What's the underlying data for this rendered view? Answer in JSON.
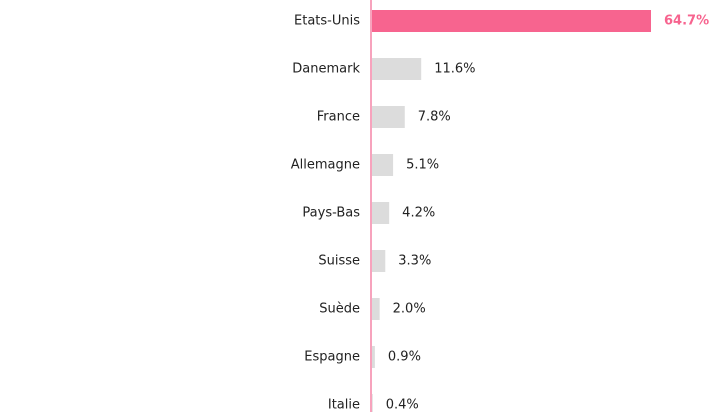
{
  "chart_data": {
    "type": "hbar",
    "categories": [
      "Etats-Unis",
      "Danemark",
      "France",
      "Allemagne",
      "Pays-Bas",
      "Suisse",
      "Suède",
      "Espagne",
      "Italie"
    ],
    "values": [
      64.7,
      11.6,
      7.8,
      5.1,
      4.2,
      3.3,
      2.0,
      0.9,
      0.4
    ],
    "value_labels": [
      "64.7%",
      "11.6%",
      "7.8%",
      "5.1%",
      "4.2%",
      "3.3%",
      "2.0%",
      "0.9%",
      "0.4%"
    ],
    "colors": [
      "#f7648f",
      "#dcdcdc",
      "#dcdcdc",
      "#dcdcdc",
      "#dcdcdc",
      "#dcdcdc",
      "#dcdcdc",
      "#dcdcdc",
      "#dcdcdc"
    ],
    "axis_color": "#f7a3bd"
  }
}
